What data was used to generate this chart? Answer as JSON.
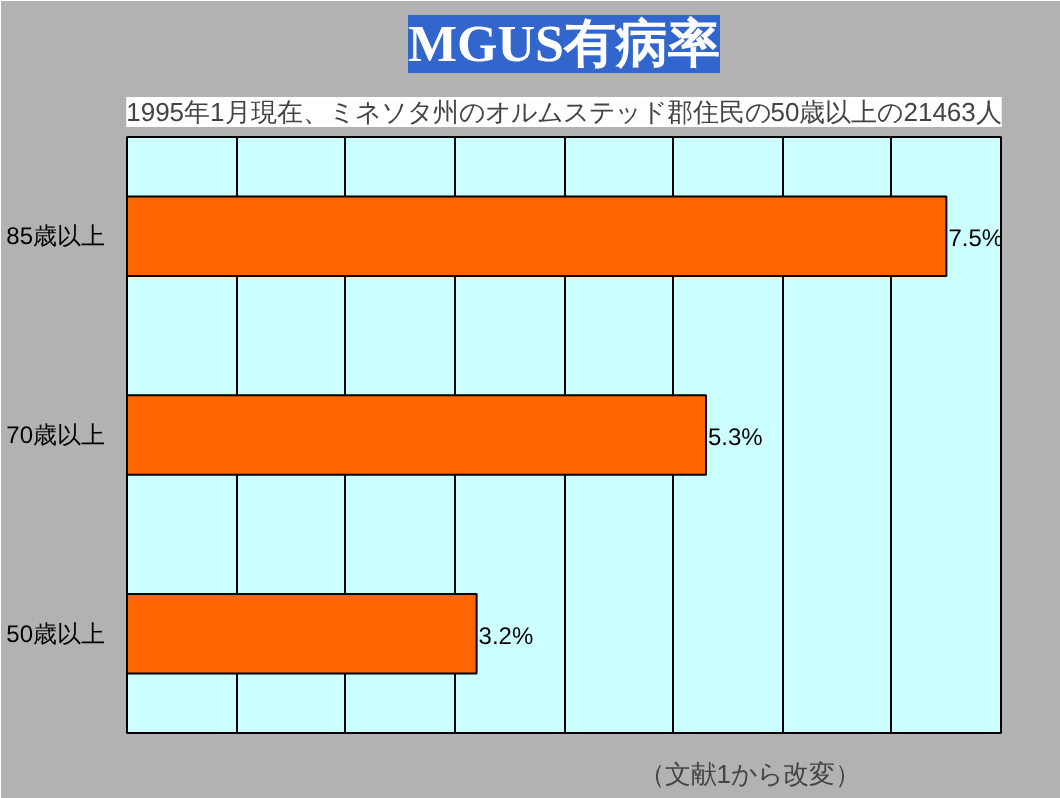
{
  "chart_data": {
    "type": "bar",
    "orientation": "horizontal",
    "title": "MGUS有病率",
    "subtitle": "1995年1月現在、ミネソタ州のオルムステッド郡住民の50歳以上の21463人",
    "categories": [
      "85歳以上",
      "70歳以上",
      "50歳以上"
    ],
    "values": [
      7.5,
      5.3,
      3.2
    ],
    "color": "#ff6600",
    "value_labels": [
      "7.5%",
      "5.3%",
      "3.2%"
    ],
    "xlim": [
      0,
      8
    ],
    "xticks": [
      {
        "value": 0,
        "label": null
      },
      {
        "value": 1,
        "label": null
      },
      {
        "value": 2,
        "label": null
      },
      {
        "value": 3,
        "label": null
      },
      {
        "value": 4,
        "label": null
      },
      {
        "value": 5,
        "label": null
      },
      {
        "value": 6,
        "label": null
      },
      {
        "value": 7,
        "label": null
      },
      {
        "value": 8,
        "label": null
      }
    ],
    "grid": "x",
    "tick_labels": "y",
    "annotations": [
      "（文献1から改変）"
    ]
  }
}
